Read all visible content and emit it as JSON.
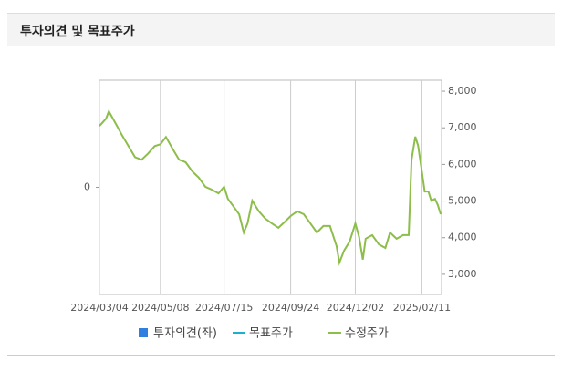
{
  "header": {
    "title": "투자의견 및 목표주가"
  },
  "chart_data": {
    "type": "line",
    "x": [
      "2024/03/04",
      "2024/03/11",
      "2024/03/14",
      "2024/03/21",
      "2024/03/28",
      "2024/04/04",
      "2024/04/11",
      "2024/04/18",
      "2024/04/25",
      "2024/05/02",
      "2024/05/08",
      "2024/05/14",
      "2024/05/21",
      "2024/05/28",
      "2024/06/04",
      "2024/06/11",
      "2024/06/18",
      "2024/06/25",
      "2024/07/02",
      "2024/07/09",
      "2024/07/15",
      "2024/07/19",
      "2024/07/26",
      "2024/07/31",
      "2024/08/05",
      "2024/08/09",
      "2024/08/14",
      "2024/08/21",
      "2024/08/28",
      "2024/09/04",
      "2024/09/11",
      "2024/09/18",
      "2024/09/24",
      "2024/10/01",
      "2024/10/08",
      "2024/10/15",
      "2024/10/22",
      "2024/10/29",
      "2024/11/05",
      "2024/11/12",
      "2024/11/15",
      "2024/11/20",
      "2024/11/26",
      "2024/12/02",
      "2024/12/06",
      "2024/12/10",
      "2024/12/13",
      "2024/12/20",
      "2024/12/27",
      "2025/01/03",
      "2025/01/08",
      "2025/01/15",
      "2025/01/22",
      "2025/01/28",
      "2025/01/31",
      "2025/02/04",
      "2025/02/07",
      "2025/02/11",
      "2025/02/14",
      "2025/02/18",
      "2025/02/21",
      "2025/02/25",
      "2025/02/28",
      "2025/03/03"
    ],
    "series": [
      {
        "name": "투자의견(좌)",
        "color": "#2f7fe0",
        "mark": "bar",
        "axis": "y",
        "values": [
          null,
          null,
          null,
          null,
          null,
          null,
          null,
          null,
          null,
          null,
          null,
          null,
          null,
          null,
          null,
          null,
          null,
          null,
          null,
          null,
          null,
          null,
          null,
          null,
          null,
          null,
          null,
          null,
          null,
          null,
          null,
          null,
          null,
          null,
          null,
          null,
          null,
          null,
          null,
          null,
          null,
          null,
          null,
          null,
          null,
          null,
          null,
          null,
          null,
          null,
          null,
          null,
          null,
          null,
          null,
          null,
          null,
          null,
          null,
          null,
          null,
          null,
          null,
          null
        ]
      },
      {
        "name": "목표주가",
        "color": "#19b3c9",
        "mark": "line",
        "axis": "y2",
        "values": [
          null,
          null,
          null,
          null,
          null,
          null,
          null,
          null,
          null,
          null,
          null,
          null,
          null,
          null,
          null,
          null,
          null,
          null,
          null,
          null,
          null,
          null,
          null,
          null,
          null,
          null,
          null,
          null,
          null,
          null,
          null,
          null,
          null,
          null,
          null,
          null,
          null,
          null,
          null,
          null,
          null,
          null,
          null,
          null,
          null,
          null,
          null,
          null,
          null,
          null,
          null,
          null,
          null,
          null,
          null,
          null,
          null,
          null,
          null,
          null,
          null,
          null,
          null,
          null
        ]
      },
      {
        "name": "수정주가",
        "color": "#8dbd4a",
        "mark": "line",
        "axis": "y2",
        "values": [
          7050,
          7250,
          7450,
          7130,
          6800,
          6500,
          6200,
          6130,
          6300,
          6500,
          6550,
          6750,
          6430,
          6130,
          6060,
          5810,
          5640,
          5390,
          5310,
          5210,
          5390,
          5060,
          4820,
          4640,
          4140,
          4390,
          5010,
          4720,
          4520,
          4390,
          4270,
          4440,
          4590,
          4720,
          4640,
          4390,
          4140,
          4320,
          4320,
          3770,
          3320,
          3650,
          3900,
          4390,
          4020,
          3400,
          3970,
          4070,
          3820,
          3720,
          4140,
          3970,
          4070,
          4070,
          6130,
          6760,
          6510,
          5810,
          5260,
          5260,
          5010,
          5060,
          4890,
          4640
        ]
      }
    ],
    "xlim": [
      "2024/03/04",
      "2025/03/04"
    ],
    "xticks": [
      "2024/03/04",
      "2024/05/08",
      "2024/07/15",
      "2024/09/24",
      "2024/12/02",
      "2025/02/11"
    ],
    "ylim": [
      -1,
      1
    ],
    "yticks": [
      0
    ],
    "y2lim": [
      2450,
      8300
    ],
    "y2ticks": [
      {
        "value": 3000,
        "label": "3,000"
      },
      {
        "value": 4000,
        "label": "4,000"
      },
      {
        "value": 5000,
        "label": "5,000"
      },
      {
        "value": 6000,
        "label": "6,000"
      },
      {
        "value": 7000,
        "label": "7,000"
      },
      {
        "value": 8000,
        "label": "8,000"
      }
    ],
    "grid": true
  }
}
